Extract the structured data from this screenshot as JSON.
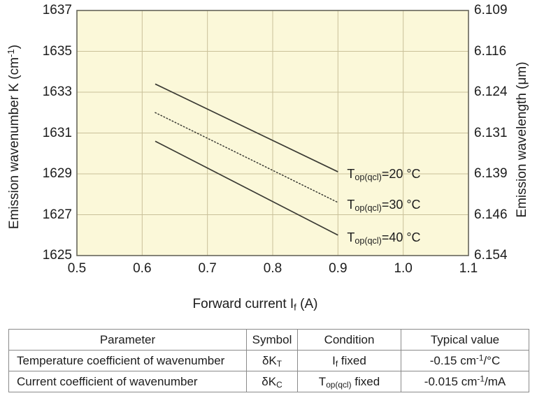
{
  "colors": {
    "plot_bg": "#FBF8D9",
    "grid": "#C9C099",
    "frame": "#66655A",
    "line": "#3B3B34",
    "text": "#1C1C1C",
    "table_border": "#8A8A8A"
  },
  "chart_data": {
    "type": "line",
    "title": "",
    "xlabel": "Forward current I<sub>f</sub> (A)",
    "ylabel_left": "Emission wavenumber K (cm<sup>-1</sup>)",
    "ylabel_right": "Emission wavelength (μm)",
    "xlim": [
      0.5,
      1.1
    ],
    "ylim": [
      1625,
      1637
    ],
    "grid": true,
    "legend_position": "right-of-line-ends",
    "x_ticks": [
      0.5,
      0.6,
      0.7,
      0.8,
      0.9,
      1.0,
      1.1
    ],
    "x_tick_labels": [
      "0.5",
      "0.6",
      "0.7",
      "0.8",
      "0.9",
      "1.0",
      "1.1"
    ],
    "y_ticks_left": [
      1637,
      1635,
      1633,
      1631,
      1629,
      1627,
      1625
    ],
    "y_tick_labels_left": [
      "1637",
      "1635",
      "1633",
      "1631",
      "1629",
      "1627",
      "1625"
    ],
    "y_tick_labels_right": [
      "6.109",
      "6.116",
      "6.124",
      "6.131",
      "6.139",
      "6.146",
      "6.154"
    ],
    "series": [
      {
        "name": "Top(qcl)=20 °C",
        "label_rich": "T<sub>op(qcl)</sub>=20 °C",
        "style": "solid",
        "x": [
          0.62,
          0.9
        ],
        "y": [
          1633.4,
          1629.1
        ]
      },
      {
        "name": "Top(qcl)=30 °C",
        "label_rich": "T<sub>op(qcl)</sub>=30 °C",
        "style": "dotted",
        "x": [
          0.62,
          0.9
        ],
        "y": [
          1632.0,
          1627.6
        ]
      },
      {
        "name": "Top(qcl)=40 °C",
        "label_rich": "T<sub>op(qcl)</sub>=40 °C",
        "style": "solid",
        "x": [
          0.62,
          0.9
        ],
        "y": [
          1630.6,
          1626.0
        ]
      }
    ]
  },
  "table": {
    "headers": [
      "Parameter",
      "Symbol",
      "Condition",
      "Typical value"
    ],
    "rows": [
      {
        "parameter": "Temperature coefficient of wavenumber",
        "symbol": "δK<sub>T</sub>",
        "condition": "I<sub>f</sub> fixed",
        "typical_value": "-0.15 cm<sup>-1</sup>/°C"
      },
      {
        "parameter": "Current coefficient of wavenumber",
        "symbol": "δK<sub>C</sub>",
        "condition": "T<sub>op(qcl)</sub> fixed",
        "typical_value": "-0.015 cm<sup>-1</sup>/mA"
      }
    ]
  }
}
